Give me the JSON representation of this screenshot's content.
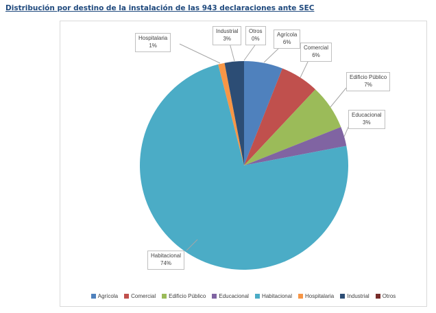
{
  "page": {
    "title": "Distribución por destino de la instalación de las 943 declaraciones ante SEC"
  },
  "chart_data": {
    "type": "pie",
    "title": "Distribución por destino de la instalación de las 943 declaraciones ante SEC",
    "total_declarations": 943,
    "categories": [
      "Agrícola",
      "Comercial",
      "Edificio Público",
      "Educacional",
      "Habitacional",
      "Hospitalaria",
      "Industrial",
      "Otros"
    ],
    "values": [
      6,
      6,
      7,
      3,
      74,
      1,
      3,
      0
    ],
    "pct_labels": [
      "6%",
      "6%",
      "7%",
      "3%",
      "74%",
      "1%",
      "3%",
      "0%"
    ],
    "colors": [
      "#4F81BD",
      "#C0504D",
      "#9BBB59",
      "#8064A2",
      "#4BACC6",
      "#F79646",
      "#2C4D75",
      "#772C2A"
    ],
    "legend_position": "bottom",
    "start_angle": 0,
    "direction": "clockwise"
  }
}
